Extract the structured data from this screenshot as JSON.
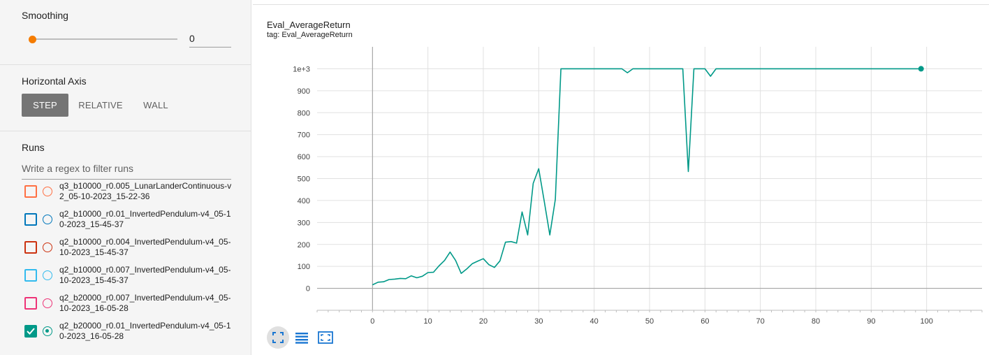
{
  "sidebar": {
    "smoothing": {
      "title": "Smoothing",
      "value": "0",
      "slider_fraction": 0
    },
    "horizontal_axis": {
      "title": "Horizontal Axis",
      "options": [
        "STEP",
        "RELATIVE",
        "WALL"
      ],
      "selected": "STEP"
    },
    "runs": {
      "title": "Runs",
      "filter_placeholder": "Write a regex to filter runs",
      "items": [
        {
          "label": "q3_b10000_r0.005_LunarLanderContinuous-v2_05-10-2023_15-22-36",
          "color": "#ff7043",
          "checked": false
        },
        {
          "label": "q2_b10000_r0.01_InvertedPendulum-v4_05-10-2023_15-45-37",
          "color": "#0077bb",
          "checked": false
        },
        {
          "label": "q2_b10000_r0.004_InvertedPendulum-v4_05-10-2023_15-45-37",
          "color": "#cc3311",
          "checked": false
        },
        {
          "label": "q2_b10000_r0.007_InvertedPendulum-v4_05-10-2023_15-45-37",
          "color": "#33bbee",
          "checked": false
        },
        {
          "label": "q2_b20000_r0.007_InvertedPendulum-v4_05-10-2023_16-05-28",
          "color": "#ee3377",
          "checked": false
        },
        {
          "label": "q2_b20000_r0.01_InvertedPendulum-v4_05-10-2023_16-05-28",
          "color": "#009988",
          "checked": true
        }
      ]
    }
  },
  "main": {
    "title": "Eval_AverageReturn",
    "tag": "tag: Eval_AverageReturn",
    "toolbar": {
      "icons": [
        "fullscreen-icon",
        "toggle-y-log-icon",
        "fit-domain-icon"
      ]
    }
  },
  "chart_data": {
    "type": "line",
    "title": "Eval_AverageReturn",
    "xlabel": "",
    "ylabel": "",
    "xlim": [
      -10,
      110
    ],
    "ylim": [
      -100,
      1100
    ],
    "x_ticks": [
      "0",
      "10",
      "20",
      "30",
      "40",
      "50",
      "60",
      "70",
      "80",
      "90",
      "100"
    ],
    "y_ticks": [
      "0",
      "100",
      "200",
      "300",
      "400",
      "500",
      "600",
      "700",
      "800",
      "900",
      "1e+3"
    ],
    "grid": true,
    "series": [
      {
        "color": "#009988",
        "x": [
          0,
          1,
          2,
          3,
          4,
          5,
          6,
          7,
          8,
          9,
          10,
          11,
          12,
          13,
          14,
          15,
          16,
          17,
          18,
          19,
          20,
          21,
          22,
          23,
          24,
          25,
          26,
          27,
          28,
          29,
          30,
          31,
          32,
          33,
          34,
          35,
          36,
          37,
          38,
          39,
          40,
          41,
          42,
          43,
          44,
          45,
          46,
          47,
          48,
          49,
          50,
          51,
          52,
          53,
          54,
          55,
          56,
          57,
          58,
          59,
          60,
          61,
          62,
          63,
          64,
          65,
          66,
          67,
          68,
          69,
          70,
          71,
          72,
          73,
          74,
          75,
          76,
          77,
          78,
          79,
          80,
          81,
          82,
          83,
          84,
          85,
          86,
          87,
          88,
          89,
          90,
          91,
          92,
          93,
          94,
          95,
          96,
          97,
          98,
          99
        ],
        "y": [
          16,
          28,
          30,
          40,
          42,
          45,
          44,
          57,
          48,
          55,
          72,
          73,
          102,
          127,
          165,
          127,
          68,
          88,
          112,
          124,
          135,
          108,
          95,
          125,
          210,
          213,
          206,
          348,
          243,
          478,
          545,
          395,
          243,
          405,
          1000,
          1000,
          1000,
          1000,
          1000,
          1000,
          1000,
          1000,
          1000,
          1000,
          1000,
          1000,
          982,
          1000,
          1000,
          1000,
          1000,
          1000,
          1000,
          1000,
          1000,
          1000,
          1000,
          532,
          1000,
          1000,
          1000,
          966,
          1000,
          1000,
          1000,
          1000,
          1000,
          1000,
          1000,
          1000,
          1000,
          1000,
          1000,
          1000,
          1000,
          1000,
          1000,
          1000,
          1000,
          1000,
          1000,
          1000,
          1000,
          1000,
          1000,
          1000,
          1000,
          1000,
          1000,
          1000,
          1000,
          1000,
          1000,
          1000,
          1000,
          1000,
          1000,
          1000,
          1000,
          1000
        ]
      }
    ]
  }
}
